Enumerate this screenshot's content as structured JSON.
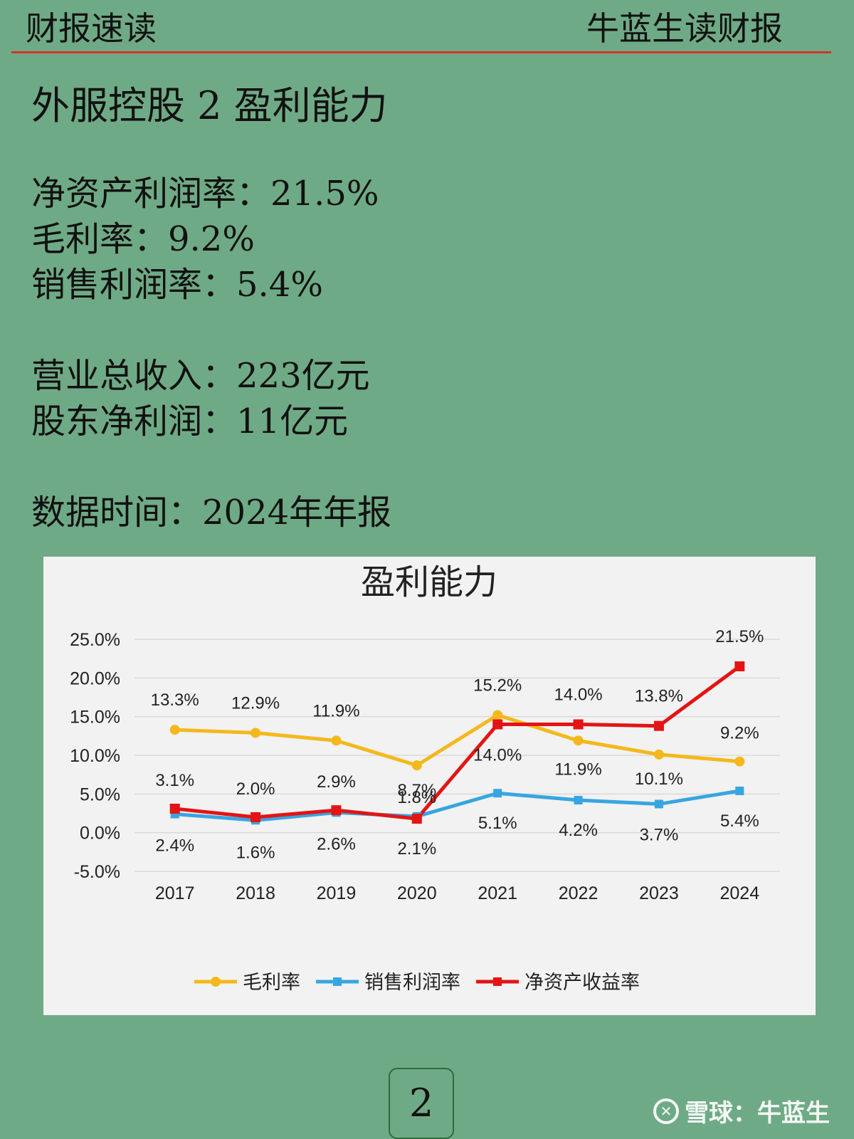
{
  "header": {
    "left": "财报速读",
    "right": "牛蓝生读财报"
  },
  "page_title": "外服控股 2 盈利能力",
  "metrics": [
    "净资产利润率：21.5%",
    "毛利率：9.2%",
    "销售利润率：5.4%",
    "营业总收入：223亿元",
    "股东净利润：11亿元",
    "数据时间：2024年年报"
  ],
  "colors": {
    "background": "#6faa86",
    "header_line": "#d1332b",
    "gross": "#f4b81c",
    "sales": "#37a6e0",
    "roe": "#e41414"
  },
  "chart_data": {
    "type": "line",
    "title": "盈利能力",
    "categories": [
      "2017",
      "2018",
      "2019",
      "2020",
      "2021",
      "2022",
      "2023",
      "2024"
    ],
    "ylim": [
      -5,
      25
    ],
    "yticks": [
      "25.0%",
      "20.0%",
      "15.0%",
      "10.0%",
      "5.0%",
      "0.0%",
      "-5.0%"
    ],
    "grid": true,
    "legend_position": "bottom",
    "series": [
      {
        "name": "毛利率",
        "color": "#f4b81c",
        "marker": "circle",
        "values": [
          13.3,
          12.9,
          11.9,
          8.7,
          15.2,
          11.9,
          10.1,
          9.2
        ],
        "labels": [
          "13.3%",
          "12.9%",
          "11.9%",
          "8.7%",
          "15.2%",
          "11.9%",
          "10.1%",
          "9.2%"
        ]
      },
      {
        "name": "销售利润率",
        "color": "#37a6e0",
        "marker": "square",
        "values": [
          2.4,
          1.6,
          2.6,
          2.1,
          5.1,
          4.2,
          3.7,
          5.4
        ],
        "labels": [
          "2.4%",
          "1.6%",
          "2.6%",
          "2.1%",
          "5.1%",
          "4.2%",
          "3.7%",
          "5.4%"
        ]
      },
      {
        "name": "净资产收益率",
        "color": "#e41414",
        "marker": "square",
        "values": [
          3.1,
          2.0,
          2.9,
          1.8,
          14.0,
          14.0,
          13.8,
          21.5
        ],
        "labels": [
          "3.1%",
          "2.0%",
          "2.9%",
          "1.8%",
          "14.0%",
          "14.0%",
          "13.8%",
          "21.5%"
        ]
      }
    ]
  },
  "page_number": "2",
  "watermark": {
    "text": "雪球：牛蓝生",
    "icon": "xueqiu-logo-icon"
  }
}
